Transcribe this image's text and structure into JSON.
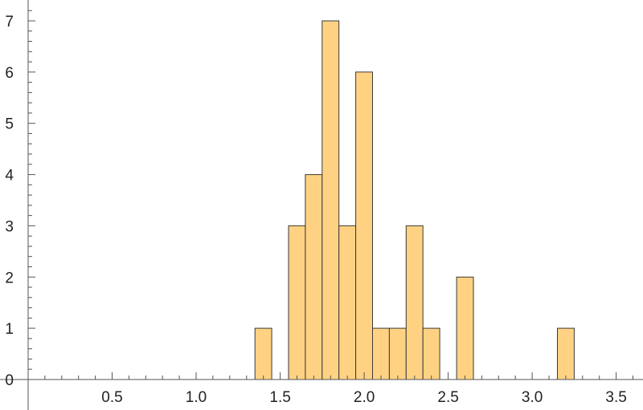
{
  "chart_data": {
    "type": "bar",
    "bin_width": 0.1,
    "bins": [
      {
        "start": 1.35,
        "end": 1.45,
        "count": 1
      },
      {
        "start": 1.55,
        "end": 1.65,
        "count": 3
      },
      {
        "start": 1.65,
        "end": 1.75,
        "count": 4
      },
      {
        "start": 1.75,
        "end": 1.85,
        "count": 7
      },
      {
        "start": 1.85,
        "end": 1.95,
        "count": 3
      },
      {
        "start": 1.95,
        "end": 2.05,
        "count": 6
      },
      {
        "start": 2.05,
        "end": 2.15,
        "count": 1
      },
      {
        "start": 2.15,
        "end": 2.25,
        "count": 1
      },
      {
        "start": 2.25,
        "end": 2.35,
        "count": 3
      },
      {
        "start": 2.35,
        "end": 2.45,
        "count": 1
      },
      {
        "start": 2.55,
        "end": 2.65,
        "count": 2
      },
      {
        "start": 3.15,
        "end": 3.25,
        "count": 1
      }
    ],
    "x_ticks": [
      "0.5",
      "1.0",
      "1.5",
      "2.0",
      "2.5",
      "3.0",
      "3.5"
    ],
    "y_ticks": [
      "0",
      "1",
      "2",
      "3",
      "4",
      "5",
      "6",
      "7"
    ],
    "xlim": [
      0,
      3.65
    ],
    "ylim": [
      0,
      7.25
    ],
    "title": "",
    "xlabel": "",
    "ylabel": "",
    "grid": false,
    "bar_color": "#FFD283",
    "bar_edge_color": "#3a3a3a",
    "axis_color": "#555555"
  }
}
